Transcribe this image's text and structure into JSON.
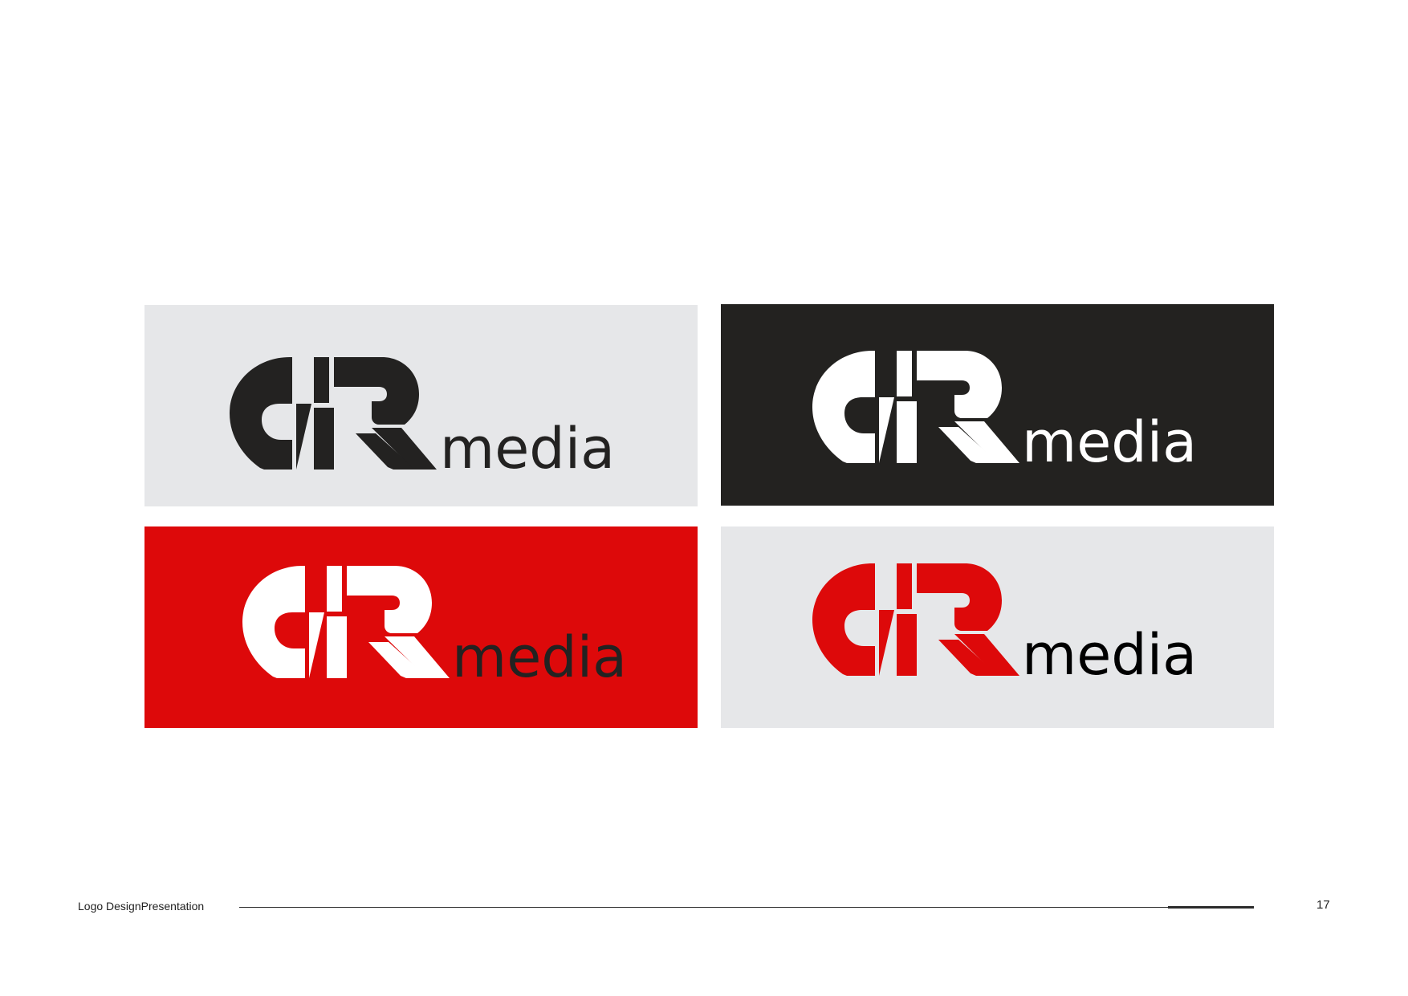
{
  "logo": {
    "wordmark": "media",
    "monogram": "GR"
  },
  "variants": [
    {
      "name": "black on light grey",
      "background": "#e6e7e9",
      "mark_color": "#232221",
      "text_color": "#232221"
    },
    {
      "name": "white on black",
      "background": "#232220",
      "mark_color": "#ffffff",
      "text_color": "#ffffff"
    },
    {
      "name": "white on red",
      "background": "#dd090a",
      "mark_color": "#ffffff",
      "text_color": "#232221"
    },
    {
      "name": "red on light grey",
      "background": "#e6e7e9",
      "mark_color": "#dd090a",
      "text_color": "#000000"
    }
  ],
  "footer": {
    "title": "Logo DesignPresentation",
    "page_number": "17"
  }
}
